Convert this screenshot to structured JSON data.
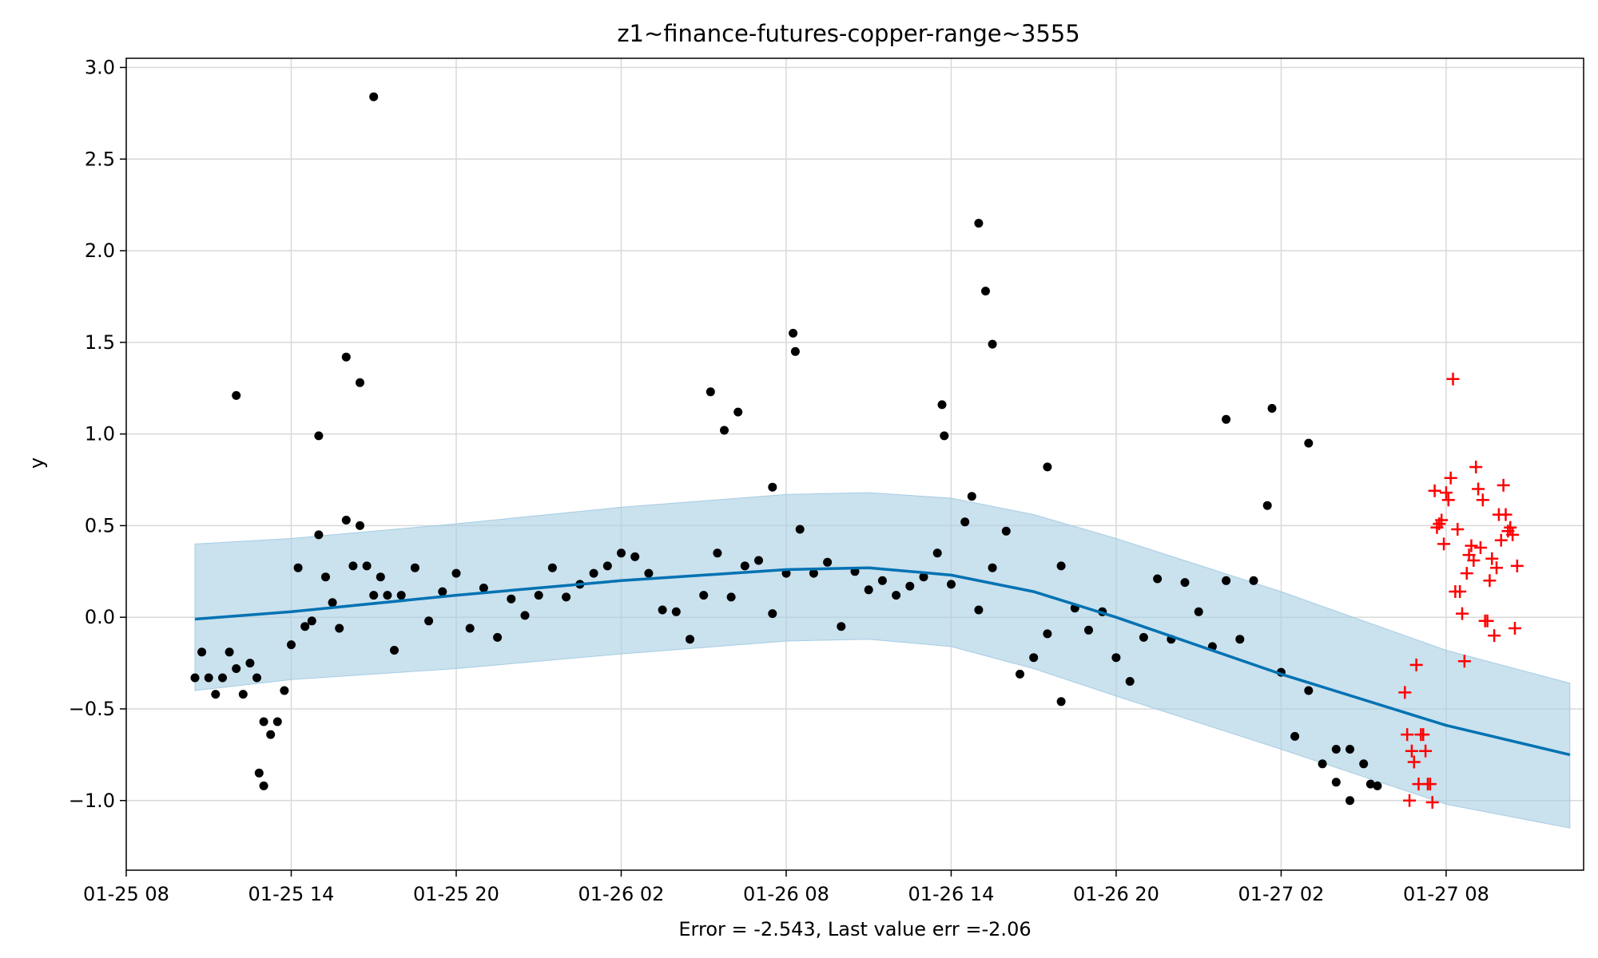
{
  "chart_data": {
    "type": "scatter",
    "title": "z1~finance-futures-copper-range~3555",
    "xlabel": "Error = -2.543, Last value err =-2.06",
    "ylabel": "y",
    "x_axis_type": "datetime",
    "xlim": [
      "2025-01-25 08:00",
      "2025-01-27 13:00"
    ],
    "ylim": [
      -1.38,
      3.05
    ],
    "x_ticks": [
      "01-25 08",
      "01-25 14",
      "01-25 20",
      "01-26 02",
      "01-26 08",
      "01-26 14",
      "01-26 20",
      "01-27 02",
      "01-27 08"
    ],
    "x_tick_values": [
      "2025-01-25 08:00",
      "2025-01-25 14:00",
      "2025-01-25 20:00",
      "2025-01-26 02:00",
      "2025-01-26 08:00",
      "2025-01-26 14:00",
      "2025-01-26 20:00",
      "2025-01-27 02:00",
      "2025-01-27 08:00"
    ],
    "y_ticks": [
      -1.0,
      -0.5,
      0.0,
      0.5,
      1.0,
      1.5,
      2.0,
      2.5,
      3.0
    ],
    "y_tick_labels": [
      "−1.0",
      "−0.5",
      "0.0",
      "0.5",
      "1.0",
      "1.5",
      "2.0",
      "2.5",
      "3.0"
    ],
    "grid": true,
    "colors": {
      "observed": "#000000",
      "forecast_line": "#0072b2",
      "uncertainty_band": "#a6cde3",
      "test_points": "#ff0000",
      "grid": "#d9d9d9"
    },
    "series": [
      {
        "kind": "forecast",
        "x": [
          "2025-01-25 10:30",
          "2025-01-25 14:00",
          "2025-01-25 20:00",
          "2025-01-26 02:00",
          "2025-01-26 08:00",
          "2025-01-26 11:00",
          "2025-01-26 14:00",
          "2025-01-26 17:00",
          "2025-01-26 20:00",
          "2025-01-27 02:00",
          "2025-01-27 08:00",
          "2025-01-27 12:30"
        ],
        "y": [
          -0.01,
          0.03,
          0.12,
          0.2,
          0.26,
          0.27,
          0.23,
          0.14,
          0.0,
          -0.31,
          -0.59,
          -0.75
        ]
      },
      {
        "kind": "uncertainty_band",
        "x": [
          "2025-01-25 10:30",
          "2025-01-25 14:00",
          "2025-01-25 20:00",
          "2025-01-26 02:00",
          "2025-01-26 08:00",
          "2025-01-26 11:00",
          "2025-01-26 14:00",
          "2025-01-26 17:00",
          "2025-01-26 20:00",
          "2025-01-27 02:00",
          "2025-01-27 08:00",
          "2025-01-27 12:30"
        ],
        "lower": [
          -0.4,
          -0.34,
          -0.28,
          -0.2,
          -0.13,
          -0.12,
          -0.16,
          -0.28,
          -0.43,
          -0.72,
          -1.02,
          -1.15
        ],
        "upper": [
          0.4,
          0.43,
          0.51,
          0.6,
          0.67,
          0.68,
          0.65,
          0.56,
          0.43,
          0.14,
          -0.18,
          -0.36
        ]
      },
      {
        "kind": "observed",
        "x": [
          "2025-01-25 10:30",
          "2025-01-25 10:45",
          "2025-01-25 11:00",
          "2025-01-25 11:15",
          "2025-01-25 11:30",
          "2025-01-25 11:45",
          "2025-01-25 12:00",
          "2025-01-25 12:15",
          "2025-01-25 12:30",
          "2025-01-25 12:45",
          "2025-01-25 13:00",
          "2025-01-25 13:15",
          "2025-01-25 13:30",
          "2025-01-25 13:45",
          "2025-01-25 14:00",
          "2025-01-25 14:15",
          "2025-01-25 14:30",
          "2025-01-25 14:45",
          "2025-01-25 15:00",
          "2025-01-25 15:15",
          "2025-01-25 15:30",
          "2025-01-25 15:45",
          "2025-01-25 16:00",
          "2025-01-25 16:15",
          "2025-01-25 16:30",
          "2025-01-25 16:45",
          "2025-01-25 17:00",
          "2025-01-25 17:15",
          "2025-01-25 17:30",
          "2025-01-25 17:45",
          "2025-01-25 18:00",
          "2025-01-25 18:30",
          "2025-01-25 19:00",
          "2025-01-25 19:30",
          "2025-01-25 20:00",
          "2025-01-25 20:30",
          "2025-01-25 21:00",
          "2025-01-25 21:30",
          "2025-01-25 22:00",
          "2025-01-25 22:30",
          "2025-01-25 23:00",
          "2025-01-25 23:30",
          "2025-01-26 00:00",
          "2025-01-26 00:30",
          "2025-01-26 01:00",
          "2025-01-26 01:30",
          "2025-01-26 02:00",
          "2025-01-26 02:30",
          "2025-01-26 03:00",
          "2025-01-26 03:30",
          "2025-01-26 04:00",
          "2025-01-26 04:30",
          "2025-01-26 05:00",
          "2025-01-26 05:30",
          "2025-01-26 06:00",
          "2025-01-26 06:30",
          "2025-01-26 07:00",
          "2025-01-26 07:30",
          "2025-01-26 08:00",
          "2025-01-26 08:30",
          "2025-01-26 09:00",
          "2025-01-26 09:30",
          "2025-01-26 10:00",
          "2025-01-26 10:30",
          "2025-01-26 11:00",
          "2025-01-26 11:30",
          "2025-01-26 12:00",
          "2025-01-26 12:30",
          "2025-01-26 13:00",
          "2025-01-26 13:30",
          "2025-01-26 14:00",
          "2025-01-26 14:30",
          "2025-01-26 15:00",
          "2025-01-26 15:30",
          "2025-01-26 16:00",
          "2025-01-26 16:30",
          "2025-01-26 17:00",
          "2025-01-26 17:30",
          "2025-01-26 18:00",
          "2025-01-26 18:30",
          "2025-01-26 19:00",
          "2025-01-26 19:30",
          "2025-01-26 20:00",
          "2025-01-26 20:30",
          "2025-01-26 21:00",
          "2025-01-26 21:30",
          "2025-01-26 22:00",
          "2025-01-26 22:30",
          "2025-01-26 23:00",
          "2025-01-26 23:30",
          "2025-01-27 00:00",
          "2025-01-27 00:30",
          "2025-01-27 01:00",
          "2025-01-27 01:30",
          "2025-01-27 02:00",
          "2025-01-27 02:30",
          "2025-01-27 03:00",
          "2025-01-27 03:30",
          "2025-01-27 04:00",
          "2025-01-27 04:30",
          "2025-01-27 05:00",
          "2025-01-27 05:30",
          "2025-01-25 12:00",
          "2025-01-25 15:00",
          "2025-01-25 16:00",
          "2025-01-25 16:30",
          "2025-01-26 07:30",
          "2025-01-26 08:15",
          "2025-01-26 08:20",
          "2025-01-26 14:45",
          "2025-01-26 15:15",
          "2025-01-26 15:30",
          "2025-01-26 13:40",
          "2025-01-26 13:45",
          "2025-01-27 01:40",
          "2025-01-27 03:00",
          "2025-01-26 05:15",
          "2025-01-26 05:45",
          "2025-01-26 06:15",
          "2025-01-25 12:50",
          "2025-01-25 13:00",
          "2025-01-27 04:00",
          "2025-01-27 04:30",
          "2025-01-27 05:15",
          "2025-01-27 00:00",
          "2025-01-26 17:30",
          "2025-01-26 18:00"
        ],
        "y": [
          -0.33,
          -0.19,
          -0.33,
          -0.42,
          -0.33,
          -0.19,
          -0.28,
          -0.42,
          -0.25,
          -0.33,
          -0.57,
          -0.64,
          -0.57,
          -0.4,
          -0.15,
          0.27,
          -0.05,
          -0.02,
          0.45,
          0.22,
          0.08,
          -0.06,
          0.53,
          0.28,
          0.5,
          0.28,
          0.12,
          0.22,
          0.12,
          -0.18,
          0.12,
          0.27,
          -0.02,
          0.14,
          0.24,
          -0.06,
          0.16,
          -0.11,
          0.1,
          0.01,
          0.12,
          0.27,
          0.11,
          0.18,
          0.24,
          0.28,
          0.35,
          0.33,
          0.24,
          0.04,
          0.03,
          -0.12,
          0.12,
          0.35,
          0.11,
          0.28,
          0.31,
          0.02,
          0.24,
          0.48,
          0.24,
          0.3,
          -0.05,
          0.25,
          0.15,
          0.2,
          0.12,
          0.17,
          0.22,
          0.35,
          0.18,
          0.52,
          0.04,
          0.27,
          0.47,
          -0.31,
          -0.22,
          -0.09,
          0.28,
          0.05,
          -0.07,
          0.03,
          -0.22,
          -0.35,
          -0.11,
          0.21,
          -0.12,
          0.19,
          0.03,
          -0.16,
          0.2,
          -0.12,
          0.2,
          0.61,
          -0.3,
          -0.65,
          -0.4,
          -0.8,
          -0.9,
          -1.0,
          -0.8,
          -0.92,
          1.21,
          0.99,
          1.42,
          1.28,
          0.71,
          1.55,
          1.45,
          0.66,
          1.78,
          1.49,
          1.16,
          0.99,
          1.14,
          0.95,
          1.23,
          1.02,
          1.12,
          -0.85,
          -0.92,
          -0.72,
          -0.72,
          -0.91,
          1.08,
          0.82,
          -0.46
        ]
      },
      {
        "kind": "observed_outlier",
        "x": [
          "2025-01-25 17:00",
          "2025-01-26 15:00"
        ],
        "y": [
          2.84,
          2.15
        ]
      },
      {
        "kind": "test",
        "x": [
          "2025-01-27 06:30",
          "2025-01-27 06:35",
          "2025-01-27 06:40",
          "2025-01-27 06:45",
          "2025-01-27 06:50",
          "2025-01-27 06:55",
          "2025-01-27 07:00",
          "2025-01-27 07:05",
          "2025-01-27 07:10",
          "2025-01-27 07:15",
          "2025-01-27 07:20",
          "2025-01-27 07:25",
          "2025-01-27 07:30",
          "2025-01-27 07:35",
          "2025-01-27 07:40",
          "2025-01-27 07:45",
          "2025-01-27 07:50",
          "2025-01-27 07:55",
          "2025-01-27 08:00",
          "2025-01-27 08:05",
          "2025-01-27 08:10",
          "2025-01-27 08:15",
          "2025-01-27 08:20",
          "2025-01-27 08:25",
          "2025-01-27 08:30",
          "2025-01-27 08:35",
          "2025-01-27 08:40",
          "2025-01-27 08:45",
          "2025-01-27 08:50",
          "2025-01-27 08:55",
          "2025-01-27 09:00",
          "2025-01-27 09:05",
          "2025-01-27 09:10",
          "2025-01-27 09:15",
          "2025-01-27 09:20",
          "2025-01-27 09:25",
          "2025-01-27 09:30",
          "2025-01-27 09:35",
          "2025-01-27 09:40",
          "2025-01-27 09:45",
          "2025-01-27 09:50",
          "2025-01-27 09:55",
          "2025-01-27 10:00",
          "2025-01-27 10:05",
          "2025-01-27 10:10",
          "2025-01-27 10:15",
          "2025-01-27 10:20",
          "2025-01-27 10:25",
          "2025-01-27 10:30",
          "2025-01-27 10:35"
        ],
        "y": [
          -0.41,
          -0.64,
          -1.0,
          -0.73,
          -0.79,
          -0.26,
          -0.91,
          -0.64,
          -0.64,
          -0.73,
          -0.91,
          -0.91,
          -1.01,
          0.69,
          0.49,
          0.51,
          0.53,
          0.4,
          0.68,
          0.64,
          0.76,
          1.3,
          0.14,
          0.48,
          0.14,
          0.02,
          -0.24,
          0.24,
          0.34,
          0.39,
          0.31,
          0.82,
          0.7,
          0.38,
          0.64,
          -0.02,
          -0.02,
          0.2,
          0.32,
          -0.1,
          0.27,
          0.56,
          0.42,
          0.72,
          0.56,
          0.47,
          0.49,
          0.45,
          -0.06,
          0.28
        ]
      }
    ]
  }
}
